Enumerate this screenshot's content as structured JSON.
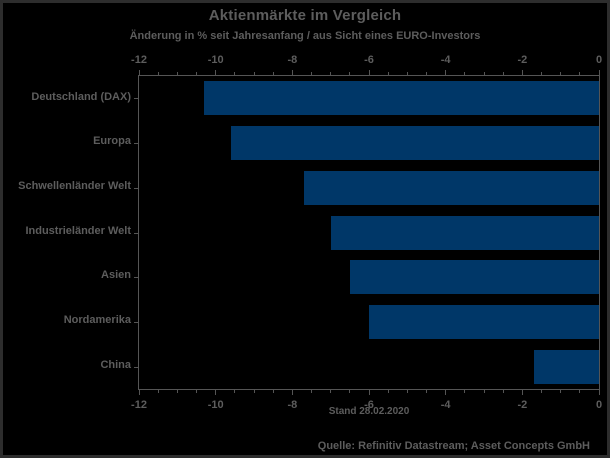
{
  "window": {
    "background": "#000000",
    "border_color": "#2d2d2d",
    "text_color": "#5d5d5d",
    "axis_color": "#555555"
  },
  "chart_data": {
    "type": "bar",
    "orientation": "horizontal",
    "title": "Aktienmärkte im Vergleich",
    "subtitle": "Änderung in % seit Jahresanfang / aus Sicht eines EURO-Investors",
    "categories": [
      "Deutschland (DAX)",
      "Europa",
      "Schwellenländer Welt",
      "Industrieländer Welt",
      "Asien",
      "Nordamerika",
      "China"
    ],
    "values": [
      -10.3,
      -9.6,
      -7.7,
      -7.0,
      -6.5,
      -6.0,
      -1.7
    ],
    "xlim": [
      -12,
      0
    ],
    "x_major_ticks": [
      -12,
      -10,
      -8,
      -6,
      -4,
      -2,
      0
    ],
    "x_major_tick_labels": [
      "-12",
      "-10",
      "-8",
      "-6",
      "-4",
      "-2",
      "0"
    ],
    "x_minor_tick_step": 0.5,
    "bar_color": "#003768",
    "grid": false,
    "legend": "none",
    "axes_with_ticks": [
      "top",
      "bottom"
    ],
    "footnote": "Stand 28.02.2020",
    "source": "Quelle: Refinitiv Datastream; Asset Concepts GmbH"
  }
}
